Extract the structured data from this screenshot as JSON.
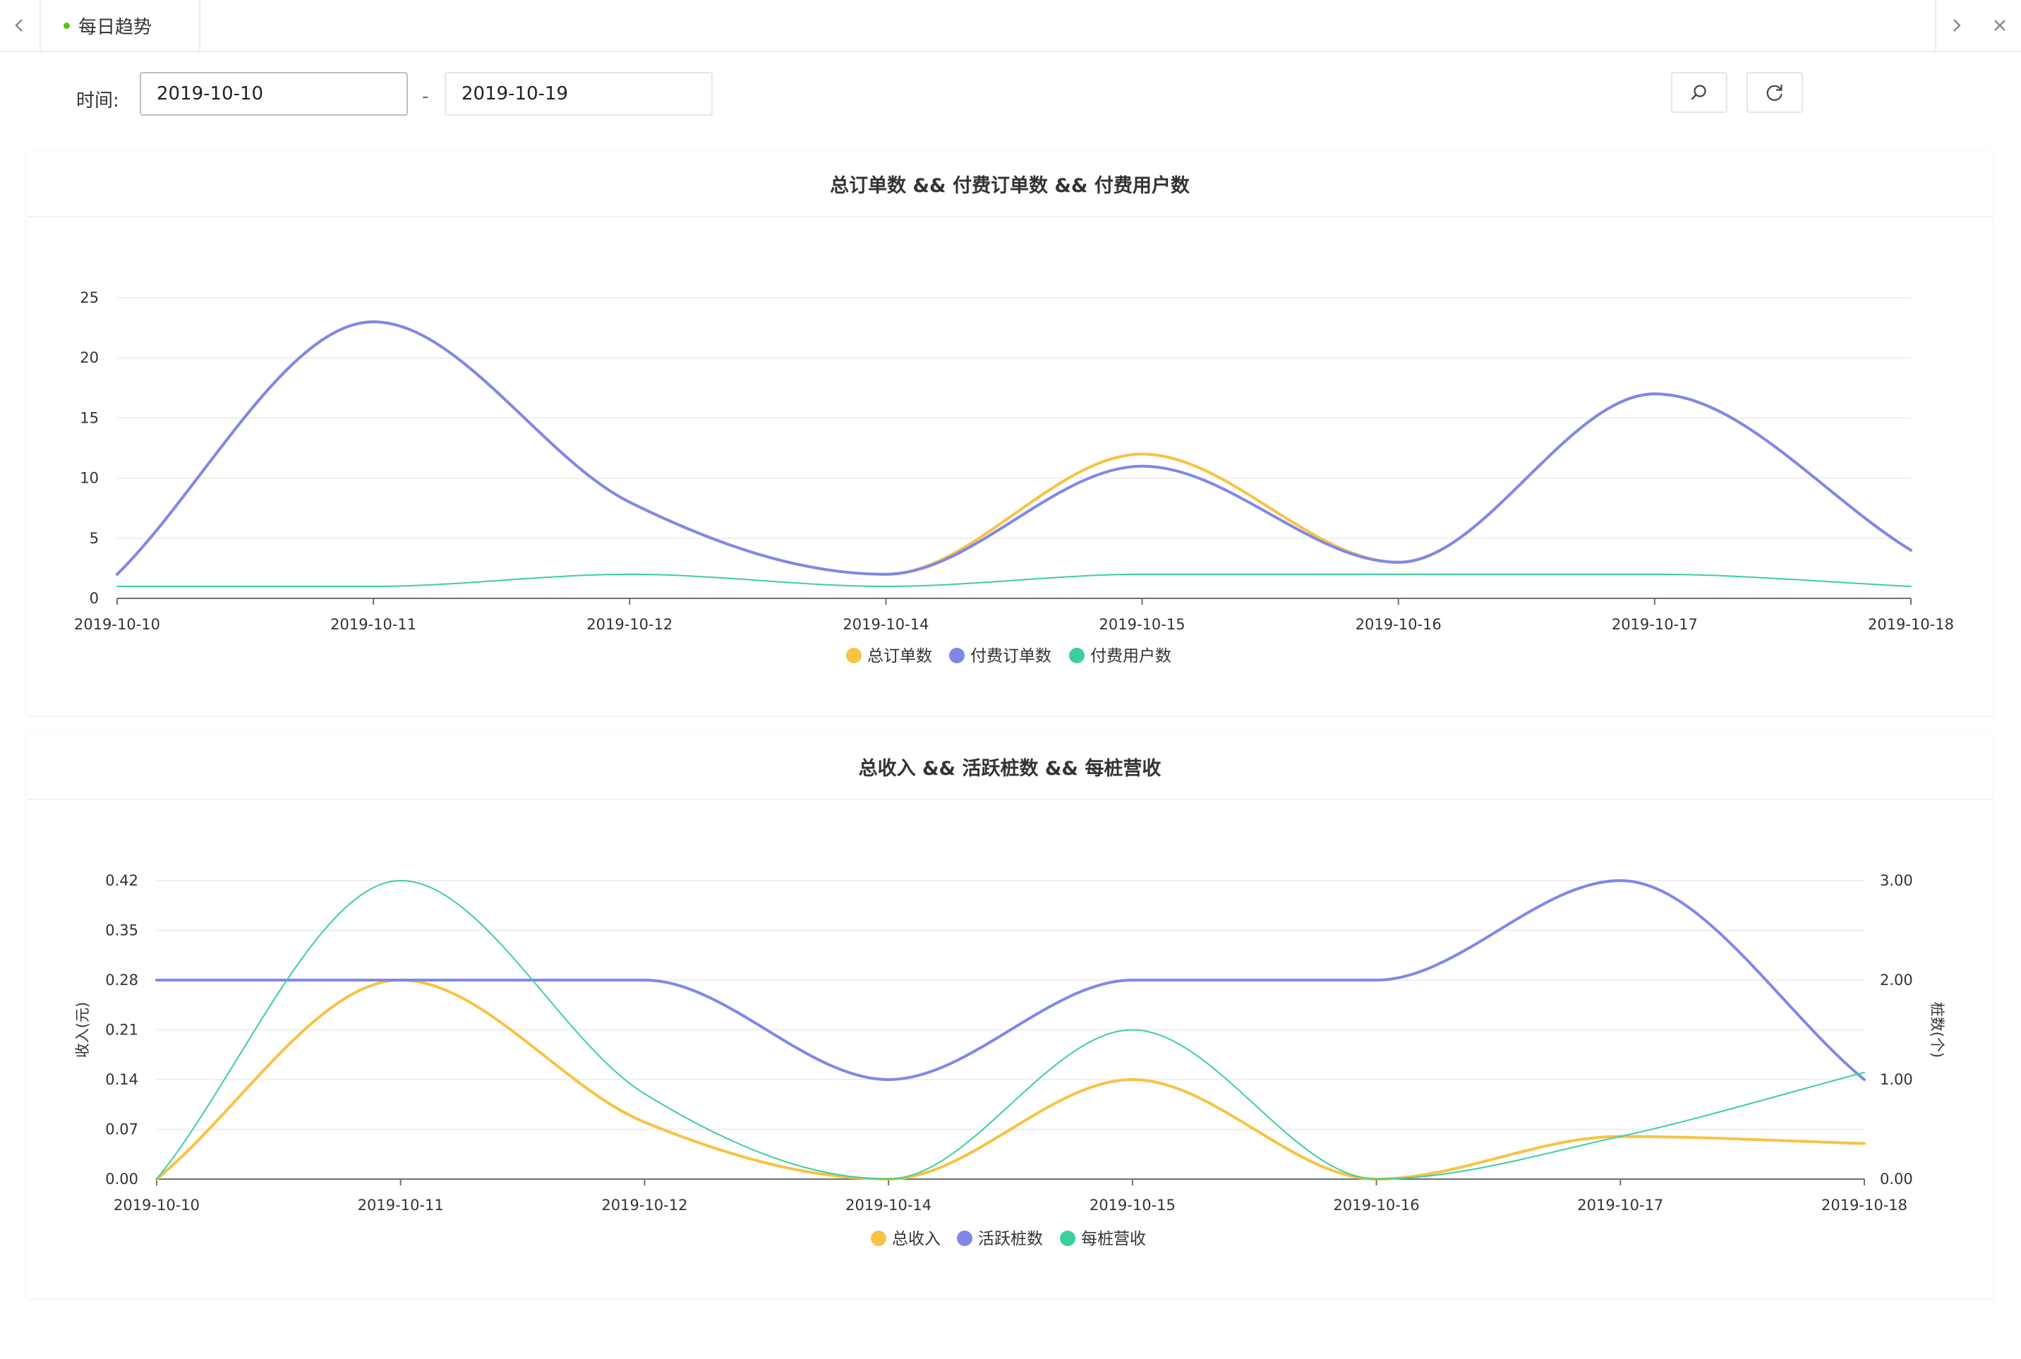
{
  "tabbar": {
    "tab_label": "每日趋势",
    "prev_icon": "chevron-left-icon",
    "next_icon": "chevron-right-icon",
    "close_icon": "close-icon"
  },
  "filter": {
    "label": "时间:",
    "start_value": "2019-10-10",
    "separator": "-",
    "end_value": "2019-10-19",
    "search_icon": "search-icon",
    "refresh_icon": "refresh-icon"
  },
  "chart_data": [
    {
      "type": "line",
      "title": "总订单数 && 付费订单数 && 付费用户数",
      "categories": [
        "2019-10-10",
        "2019-10-11",
        "2019-10-12",
        "2019-10-14",
        "2019-10-15",
        "2019-10-16",
        "2019-10-17",
        "2019-10-18"
      ],
      "yticks": [
        "0",
        "5",
        "10",
        "15",
        "20",
        "25"
      ],
      "ylim": [
        0,
        25
      ],
      "series": [
        {
          "name": "总订单数",
          "values": [
            2,
            23,
            8,
            2,
            12,
            3,
            17,
            4
          ],
          "color": "#f8c244"
        },
        {
          "name": "付费订单数",
          "values": [
            2,
            23,
            8,
            2,
            11,
            3,
            17,
            4
          ],
          "color": "#7f88e8"
        },
        {
          "name": "付费用户数",
          "values": [
            1,
            1,
            2,
            1,
            2,
            2,
            2,
            1
          ],
          "color": "#3ccf9d"
        }
      ],
      "legend": "bottom-center",
      "grid": true
    },
    {
      "type": "line",
      "title": "总收入 && 活跃桩数 && 每桩营收",
      "categories": [
        "2019-10-10",
        "2019-10-11",
        "2019-10-12",
        "2019-10-14",
        "2019-10-15",
        "2019-10-16",
        "2019-10-17",
        "2019-10-18"
      ],
      "ylabel": "收入(元)",
      "ylabel_right": "桩数(个)",
      "yticks": [
        "0.00",
        "0.07",
        "0.14",
        "0.21",
        "0.28",
        "0.35",
        "0.42"
      ],
      "ylim": [
        0,
        0.42
      ],
      "yticks_right": [
        "0.00",
        "1.00",
        "2.00",
        "3.00"
      ],
      "ylim_right": [
        0,
        3
      ],
      "series": [
        {
          "name": "总收入",
          "axis": "left",
          "values": [
            0,
            0.28,
            0.08,
            0,
            0.14,
            0,
            0.06,
            0.05
          ],
          "color": "#f8c244"
        },
        {
          "name": "活跃桩数",
          "axis": "right",
          "values": [
            2,
            2,
            2,
            1,
            2,
            2,
            3,
            1
          ],
          "color": "#7f88e8"
        },
        {
          "name": "每桩营收",
          "axis": "left",
          "values": [
            0,
            0.42,
            0.12,
            0,
            0.21,
            0,
            0.06,
            0.15
          ],
          "color": "#3ccf9d"
        }
      ],
      "legend": "bottom-center",
      "grid": true
    }
  ]
}
